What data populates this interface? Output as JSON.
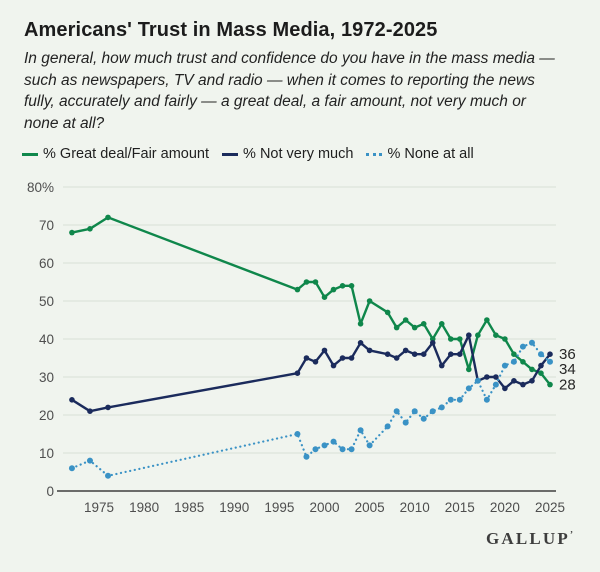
{
  "page": {
    "background": "#f0f4ee"
  },
  "header": {
    "title": "Americans' Trust in Mass Media, 1972-2025",
    "subtitle": "In general, how much trust and confidence do you have in the mass media —\nsuch as newspapers, TV and radio — when it comes to reporting the news\nfully, accurately and fairly — a great deal, a fair amount, not very much or\nnone at all?"
  },
  "legend": [
    {
      "label": "% Great deal/Fair amount",
      "color": "#0f874b",
      "style": "solid"
    },
    {
      "label": "% Not very much",
      "color": "#1b2b5c",
      "style": "solid"
    },
    {
      "label": "% None at all",
      "color": "#3a92c5",
      "style": "dotted"
    }
  ],
  "palette": {
    "green": "#0f874b",
    "navy": "#1b2b5c",
    "blue": "#3a92c5",
    "grid": "#d9dfd5",
    "axis": "#3f3f3f",
    "tick_text": "#4e4e4e"
  },
  "chart_data": {
    "type": "line",
    "title": "Americans' Trust in Mass Media, 1972-2025",
    "xlabel": "",
    "ylabel": "",
    "ylim": [
      0,
      80
    ],
    "grid": true,
    "legend_position": "top",
    "x": [
      1972,
      1974,
      1976,
      1997,
      1998,
      1999,
      2000,
      2001,
      2002,
      2003,
      2004,
      2005,
      2007,
      2008,
      2009,
      2010,
      2011,
      2012,
      2013,
      2014,
      2015,
      2016,
      2017,
      2018,
      2019,
      2020,
      2021,
      2022,
      2023,
      2024,
      2025
    ],
    "xticks": [
      1975,
      1980,
      1985,
      1990,
      1995,
      2000,
      2005,
      2010,
      2015,
      2020,
      2025
    ],
    "ytick_labels": [
      "0",
      "10",
      "20",
      "30",
      "40",
      "50",
      "60",
      "70",
      "80%"
    ],
    "series": [
      {
        "name": "% Great deal/Fair amount",
        "color": "#0f874b",
        "style": "solid",
        "end_label": "28",
        "values": [
          68,
          69,
          72,
          53,
          55,
          55,
          51,
          53,
          54,
          54,
          44,
          50,
          47,
          43,
          45,
          43,
          44,
          40,
          44,
          40,
          40,
          32,
          41,
          45,
          41,
          40,
          36,
          34,
          32,
          31,
          28
        ]
      },
      {
        "name": "% Not very much",
        "color": "#1b2b5c",
        "style": "solid",
        "end_label": "36",
        "values": [
          24,
          21,
          22,
          31,
          35,
          34,
          37,
          33,
          35,
          35,
          39,
          37,
          36,
          35,
          37,
          36,
          36,
          39,
          33,
          36,
          36,
          41,
          29,
          30,
          30,
          27,
          29,
          28,
          29,
          33,
          36
        ]
      },
      {
        "name": "% None at all",
        "color": "#3a92c5",
        "style": "dotted",
        "end_label": "34",
        "values": [
          6,
          8,
          4,
          15,
          9,
          11,
          12,
          13,
          11,
          11,
          16,
          12,
          17,
          21,
          18,
          21,
          19,
          21,
          22,
          24,
          24,
          27,
          29,
          24,
          28,
          33,
          34,
          38,
          39,
          36,
          34
        ]
      }
    ]
  },
  "footer": {
    "logo": "GALLUP",
    "logo_mark": "’"
  }
}
